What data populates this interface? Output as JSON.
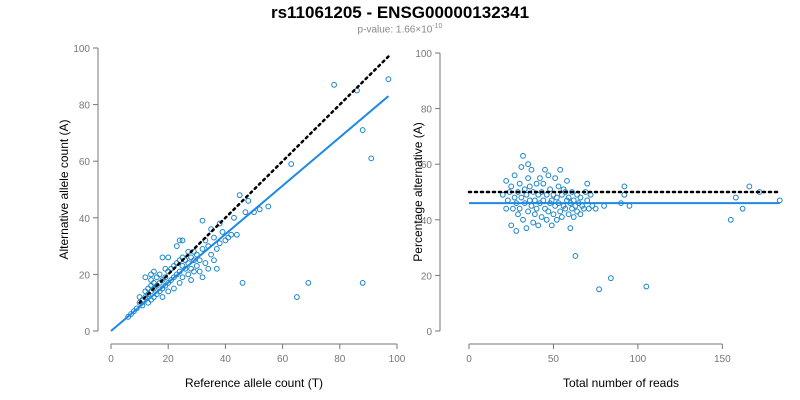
{
  "header": {
    "title": "rs11061205 - ENSG00000132341",
    "pvalue_prefix": "p-value: 1.66×10",
    "pvalue_exponent": "-10"
  },
  "colors": {
    "points": "#1a84c8",
    "fit_line": "#1e88e5",
    "reference_line": "#000000",
    "axis": "#777777",
    "tick_text": "#777777"
  },
  "chart_data": [
    {
      "type": "scatter",
      "title": "",
      "xlabel": "Reference allele count (T)",
      "ylabel": "Alternative allele count (A)",
      "xlim": [
        0,
        100
      ],
      "ylim": [
        0,
        100
      ],
      "xticks": [
        0,
        20,
        40,
        60,
        80,
        100
      ],
      "yticks": [
        0,
        20,
        40,
        60,
        80,
        100
      ],
      "grid": false,
      "reference_line": {
        "style": "dotted",
        "from": [
          10,
          10
        ],
        "to": [
          97,
          97
        ]
      },
      "fit_line": {
        "style": "solid",
        "from": [
          0,
          0
        ],
        "to": [
          97,
          83
        ]
      },
      "points": [
        [
          6,
          5
        ],
        [
          7,
          6
        ],
        [
          8,
          7
        ],
        [
          9,
          8
        ],
        [
          10,
          10
        ],
        [
          10,
          12
        ],
        [
          11,
          9
        ],
        [
          11,
          11
        ],
        [
          12,
          12
        ],
        [
          12,
          14
        ],
        [
          12,
          19
        ],
        [
          13,
          10
        ],
        [
          13,
          13
        ],
        [
          13,
          15
        ],
        [
          14,
          11
        ],
        [
          14,
          14
        ],
        [
          14,
          16
        ],
        [
          14,
          18
        ],
        [
          14,
          20
        ],
        [
          15,
          12
        ],
        [
          15,
          15
        ],
        [
          15,
          17
        ],
        [
          15,
          21
        ],
        [
          16,
          13
        ],
        [
          16,
          16
        ],
        [
          16,
          19
        ],
        [
          17,
          14
        ],
        [
          17,
          17
        ],
        [
          17,
          20
        ],
        [
          18,
          12
        ],
        [
          18,
          15
        ],
        [
          18,
          18
        ],
        [
          18,
          26
        ],
        [
          19,
          16
        ],
        [
          19,
          19
        ],
        [
          19,
          22
        ],
        [
          20,
          14
        ],
        [
          20,
          17
        ],
        [
          20,
          21
        ],
        [
          20,
          26
        ],
        [
          21,
          18
        ],
        [
          21,
          22
        ],
        [
          22,
          15
        ],
        [
          22,
          19
        ],
        [
          22,
          23
        ],
        [
          23,
          20
        ],
        [
          23,
          24
        ],
        [
          23,
          30
        ],
        [
          24,
          17
        ],
        [
          24,
          21
        ],
        [
          24,
          25
        ],
        [
          24,
          32
        ],
        [
          25,
          19
        ],
        [
          25,
          23
        ],
        [
          25,
          26
        ],
        [
          25,
          32
        ],
        [
          26,
          22
        ],
        [
          26,
          25
        ],
        [
          27,
          20
        ],
        [
          27,
          24
        ],
        [
          27,
          28
        ],
        [
          28,
          18
        ],
        [
          28,
          22
        ],
        [
          28,
          26
        ],
        [
          29,
          21
        ],
        [
          29,
          25
        ],
        [
          29,
          28
        ],
        [
          30,
          23
        ],
        [
          30,
          27
        ],
        [
          31,
          21
        ],
        [
          31,
          25
        ],
        [
          32,
          19
        ],
        [
          32,
          29
        ],
        [
          32,
          39
        ],
        [
          33,
          24
        ],
        [
          33,
          32
        ],
        [
          34,
          22
        ],
        [
          34,
          30
        ],
        [
          35,
          27
        ],
        [
          35,
          36
        ],
        [
          36,
          25
        ],
        [
          36,
          33
        ],
        [
          37,
          22
        ],
        [
          37,
          29
        ],
        [
          38,
          31
        ],
        [
          38,
          38
        ],
        [
          39,
          35
        ],
        [
          40,
          32
        ],
        [
          41,
          33
        ],
        [
          42,
          34
        ],
        [
          43,
          40
        ],
        [
          44,
          34
        ],
        [
          45,
          48
        ],
        [
          46,
          17
        ],
        [
          47,
          42
        ],
        [
          48,
          46
        ],
        [
          50,
          42
        ],
        [
          52,
          43
        ],
        [
          55,
          44
        ],
        [
          63,
          59
        ],
        [
          65,
          12
        ],
        [
          69,
          17
        ],
        [
          78,
          87
        ],
        [
          86,
          85
        ],
        [
          88,
          71
        ],
        [
          88,
          17
        ],
        [
          91,
          61
        ],
        [
          97,
          89
        ]
      ]
    },
    {
      "type": "scatter",
      "title": "",
      "xlabel": "Total number of reads",
      "ylabel": "Percentage alternative (A)",
      "xlim": [
        0,
        180
      ],
      "ylim": [
        0,
        100
      ],
      "xticks": [
        0,
        50,
        100,
        150
      ],
      "yticks": [
        0,
        20,
        40,
        60,
        80,
        100
      ],
      "grid": false,
      "reference_line": {
        "style": "dotted",
        "from": [
          0,
          50
        ],
        "to": [
          184,
          50
        ]
      },
      "fit_line": {
        "style": "solid",
        "from": [
          0,
          46
        ],
        "to": [
          184,
          46
        ]
      },
      "points": [
        [
          20,
          49
        ],
        [
          22,
          44
        ],
        [
          22,
          54
        ],
        [
          23,
          47
        ],
        [
          24,
          50
        ],
        [
          25,
          38
        ],
        [
          25,
          52
        ],
        [
          26,
          44
        ],
        [
          27,
          48
        ],
        [
          27,
          56
        ],
        [
          28,
          36
        ],
        [
          28,
          46
        ],
        [
          29,
          42
        ],
        [
          29,
          50
        ],
        [
          30,
          44
        ],
        [
          30,
          53
        ],
        [
          31,
          48
        ],
        [
          31,
          59
        ],
        [
          32,
          40
        ],
        [
          32,
          63
        ],
        [
          33,
          46
        ],
        [
          33,
          51
        ],
        [
          34,
          37
        ],
        [
          34,
          49
        ],
        [
          35,
          43
        ],
        [
          35,
          55
        ],
        [
          35,
          60
        ],
        [
          36,
          47
        ],
        [
          36,
          52
        ],
        [
          37,
          45
        ],
        [
          37,
          58
        ],
        [
          38,
          39
        ],
        [
          38,
          50
        ],
        [
          39,
          42
        ],
        [
          39,
          47
        ],
        [
          40,
          44
        ],
        [
          40,
          53
        ],
        [
          41,
          38
        ],
        [
          41,
          49
        ],
        [
          42,
          46
        ],
        [
          42,
          55
        ],
        [
          43,
          41
        ],
        [
          43,
          50
        ],
        [
          44,
          47
        ],
        [
          44,
          53
        ],
        [
          45,
          44
        ],
        [
          45,
          58
        ],
        [
          46,
          40
        ],
        [
          46,
          49
        ],
        [
          47,
          43
        ],
        [
          47,
          56
        ],
        [
          48,
          46
        ],
        [
          48,
          51
        ],
        [
          49,
          38
        ],
        [
          49,
          47
        ],
        [
          50,
          42
        ],
        [
          50,
          49
        ],
        [
          51,
          45
        ],
        [
          51,
          55
        ],
        [
          52,
          40
        ],
        [
          52,
          48
        ],
        [
          53,
          46
        ],
        [
          53,
          52
        ],
        [
          54,
          43
        ],
        [
          54,
          58
        ],
        [
          55,
          41
        ],
        [
          55,
          49
        ],
        [
          56,
          45
        ],
        [
          56,
          51
        ],
        [
          57,
          44
        ],
        [
          57,
          50
        ],
        [
          58,
          47
        ],
        [
          58,
          54
        ],
        [
          59,
          42
        ],
        [
          59,
          48
        ],
        [
          60,
          37
        ],
        [
          60,
          46
        ],
        [
          61,
          44
        ],
        [
          61,
          50
        ],
        [
          62,
          41
        ],
        [
          62,
          47
        ],
        [
          63,
          27
        ],
        [
          63,
          45
        ],
        [
          64,
          43
        ],
        [
          64,
          49
        ],
        [
          65,
          46
        ],
        [
          66,
          42
        ],
        [
          66,
          48
        ],
        [
          67,
          45
        ],
        [
          68,
          44
        ],
        [
          69,
          50
        ],
        [
          70,
          47
        ],
        [
          70,
          53
        ],
        [
          71,
          44
        ],
        [
          72,
          49
        ],
        [
          73,
          45
        ],
        [
          75,
          44
        ],
        [
          77,
          15
        ],
        [
          80,
          45
        ],
        [
          84,
          19
        ],
        [
          90,
          46
        ],
        [
          92,
          49
        ],
        [
          92,
          52
        ],
        [
          95,
          45
        ],
        [
          105,
          16
        ],
        [
          155,
          40
        ],
        [
          158,
          48
        ],
        [
          162,
          44
        ],
        [
          166,
          52
        ],
        [
          172,
          50
        ],
        [
          184,
          47
        ]
      ]
    }
  ]
}
